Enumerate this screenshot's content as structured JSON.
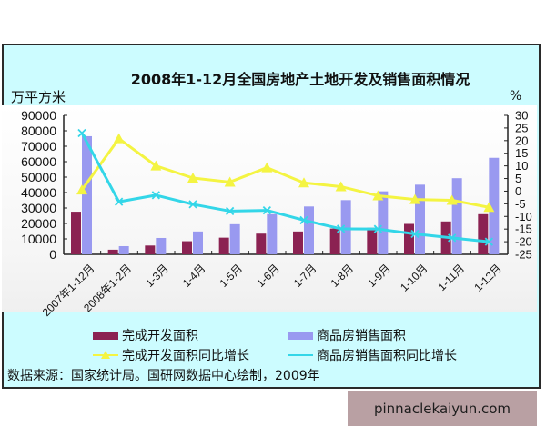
{
  "title": "2008年1-12月全国房地产土地开发及销售面积情况",
  "left_axis_label": "万平方米",
  "right_axis_label": "%",
  "legend": {
    "bar1": "完成开发面积",
    "bar2": "商品房销售面积",
    "line1": "完成开发面积同比增长",
    "line2": "商品房销售面积同比增长"
  },
  "source": "数据来源：国家统计局。国研网数据中心绘制，2009年",
  "watermark": "pinnaclekaiyun.com",
  "colors": {
    "bar1": "#8b2252",
    "bar2": "#9999f0",
    "line1": "#f4f442",
    "line2": "#33d6e8",
    "frame_bg": "#ccfcff",
    "watermark_bg": "#b9a0a3"
  },
  "chart_data": {
    "type": "bar",
    "title": "2008年1-12月全国房地产土地开发及销售面积情况",
    "xlabel": "",
    "ylabel": "万平方米",
    "ylabel_right": "%",
    "ylim": [
      0,
      90000
    ],
    "ylim_right": [
      -25,
      30
    ],
    "grid": false,
    "legend_position": "bottom",
    "left_ticks": [
      "90000",
      "80000",
      "70000",
      "60000",
      "50000",
      "40000",
      "30000",
      "20000",
      "10000",
      "0"
    ],
    "right_ticks": [
      "30",
      "25",
      "20",
      "15",
      "10",
      "5",
      "0",
      "-5",
      "-10",
      "-15",
      "-20",
      "-25"
    ],
    "categories": [
      "2007年1-12月",
      "2008年1-2月",
      "1-3月",
      "1-4月",
      "1-5月",
      "1-6月",
      "1-7月",
      "1-8月",
      "1-9月",
      "1-10月",
      "1-11月",
      "1-12月"
    ],
    "series": [
      {
        "name": "完成开发面积",
        "type": "bar",
        "axis": "left",
        "values": [
          27600,
          3000,
          5700,
          8500,
          10800,
          13400,
          14800,
          16700,
          17200,
          19700,
          21300,
          26000
        ]
      },
      {
        "name": "商品房销售面积",
        "type": "bar",
        "axis": "left",
        "values": [
          76500,
          5300,
          10600,
          14800,
          19500,
          26000,
          31000,
          35100,
          40800,
          45100,
          49300,
          62500
        ]
      },
      {
        "name": "完成开发面积同比增长",
        "type": "line",
        "axis": "right",
        "marker": "triangle",
        "values": [
          0.5,
          20.8,
          10.0,
          5.2,
          3.6,
          9.3,
          3.3,
          1.8,
          -1.8,
          -3.3,
          -3.6,
          -6.4
        ]
      },
      {
        "name": "商品房销售面积同比增长",
        "type": "line",
        "axis": "right",
        "marker": "x",
        "values": [
          23.0,
          -4.2,
          -1.6,
          -5.2,
          -7.9,
          -7.6,
          -11.5,
          -14.9,
          -15.0,
          -16.9,
          -18.5,
          -20.0
        ]
      }
    ]
  }
}
